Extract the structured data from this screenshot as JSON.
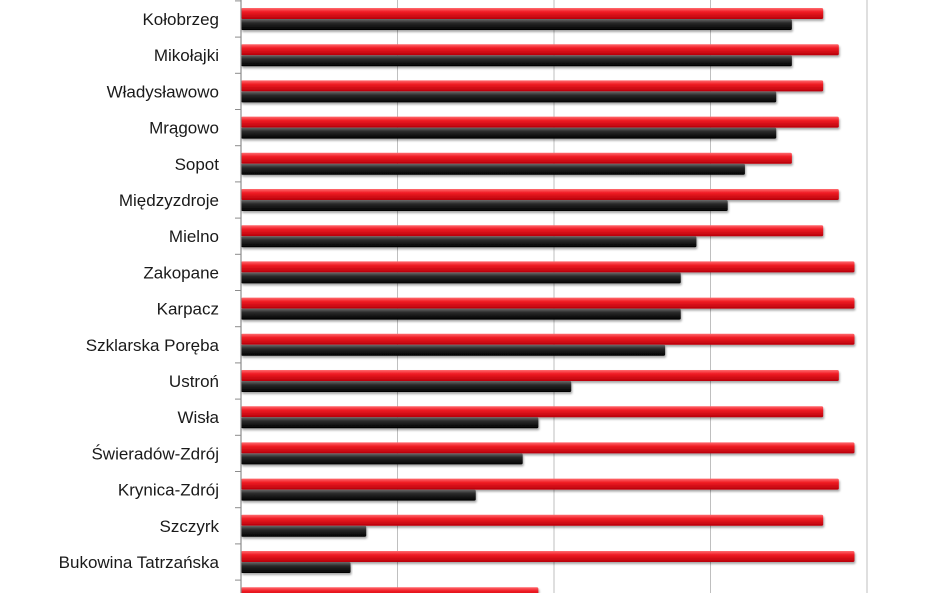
{
  "chart_data": {
    "type": "bar",
    "orientation": "horizontal",
    "categories": [
      "Kołobrzeg",
      "Mikołajki",
      "Władysławowo",
      "Mrągowo",
      "Sopot",
      "Międzyzdroje",
      "Mielno",
      "Zakopane",
      "Karpacz",
      "Szklarska Poręba",
      "Ustroń",
      "Wisła",
      "Świeradów-Zdrój",
      "Krynica-Zdrój",
      "Szczyrk",
      "Bukowina Tatrzańska"
    ],
    "series": [
      {
        "color": "#e8141c",
        "values": [
          3.72,
          3.82,
          3.72,
          3.82,
          3.52,
          3.82,
          3.72,
          3.92,
          3.92,
          3.92,
          3.82,
          3.72,
          3.92,
          3.82,
          3.72,
          3.92
        ]
      },
      {
        "color": "#1e1e1e",
        "values": [
          3.52,
          3.52,
          3.42,
          3.42,
          3.22,
          3.11,
          2.91,
          2.81,
          2.81,
          2.71,
          2.11,
          1.9,
          1.8,
          1.5,
          0.8,
          0.7
        ]
      }
    ],
    "xlim": [
      0,
      4
    ],
    "xticks": [
      0,
      1,
      2,
      3,
      4
    ],
    "grid": true,
    "tick_labels_shown": false,
    "colors": {
      "red_series": "#e8141c",
      "dark_series": "#1e1e1e",
      "grid": "#bfbfbf",
      "axis": "#8c8c8c"
    }
  }
}
